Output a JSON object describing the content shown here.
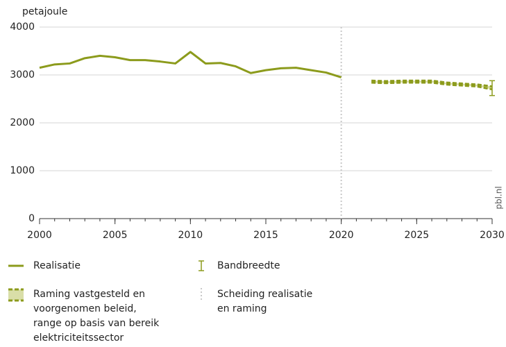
{
  "chart_data": {
    "type": "line",
    "ylabel": "petajoule",
    "source": "pbl.nl",
    "xlim": [
      2000,
      2030
    ],
    "xticks": [
      2000,
      2005,
      2010,
      2015,
      2020,
      2025,
      2030
    ],
    "xticks_minor": [
      2000,
      2001,
      2002,
      2003,
      2004,
      2005,
      2006,
      2007,
      2008,
      2009,
      2010,
      2011,
      2012,
      2013,
      2014,
      2015,
      2016,
      2017,
      2018,
      2019,
      2020,
      2021,
      2022,
      2023,
      2024,
      2025,
      2026,
      2027,
      2028,
      2029,
      2030
    ],
    "ylim": [
      0,
      4000
    ],
    "yticks": [
      0,
      1000,
      2000,
      3000,
      4000
    ],
    "grid": true,
    "series": [
      {
        "name": [
          "Realisatie"
        ],
        "color": "#8c9b1c",
        "x": [
          2000,
          2001,
          2002,
          2003,
          2004,
          2005,
          2006,
          2007,
          2008,
          2009,
          2010,
          2011,
          2012,
          2013,
          2014,
          2015,
          2016,
          2017,
          2018,
          2019,
          2020
        ],
        "values": [
          3150,
          3220,
          3240,
          3350,
          3400,
          3370,
          3310,
          3310,
          3280,
          3240,
          3480,
          3240,
          3250,
          3180,
          3040,
          3100,
          3140,
          3150,
          3100,
          3050,
          2950
        ]
      }
    ],
    "band": {
      "name": [
        "Raming vastgesteld en",
        "voorgenomen beleid,",
        "range op basis van bereik",
        "elektriciteitssector"
      ],
      "color": "#8c9b1c",
      "fill": "#d9dea8",
      "x": [
        2022,
        2023,
        2024,
        2025,
        2026,
        2027,
        2028,
        2029,
        2030
      ],
      "high": [
        2880,
        2870,
        2880,
        2880,
        2880,
        2840,
        2820,
        2800,
        2760
      ],
      "low": [
        2840,
        2830,
        2840,
        2840,
        2840,
        2800,
        2780,
        2760,
        2700
      ]
    },
    "errorbar": {
      "name": [
        "Bandbreedte"
      ],
      "color": "#8c9b1c",
      "x": 2030,
      "low": 2570,
      "high": 2880
    },
    "separator": {
      "name": [
        "Scheiding realisatie",
        "en raming"
      ],
      "color": "#c8c8c8",
      "x": 2020
    }
  }
}
